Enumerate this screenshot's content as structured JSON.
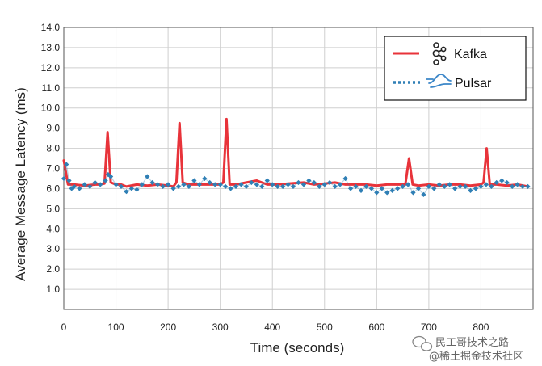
{
  "chart_data": {
    "type": "line",
    "title": "",
    "xlabel": "Time (seconds)",
    "ylabel": "Average Message Latency (ms)",
    "xlim": [
      0,
      900
    ],
    "ylim": [
      0,
      14
    ],
    "x_ticks": [
      "0",
      "100",
      "200",
      "300",
      "400",
      "500",
      "600",
      "700",
      "800"
    ],
    "y_ticks": [
      "1.0",
      "2.0",
      "3.0",
      "4.0",
      "5.0",
      "6.0",
      "7.0",
      "8.0",
      "9.0",
      "10.0",
      "11.0",
      "12.0",
      "13.0",
      "14.0"
    ],
    "grid": true,
    "legend_position": "top-right",
    "series": [
      {
        "name": "Kafka",
        "style": "solid",
        "color": "#e8333a",
        "x": [
          0,
          8,
          20,
          40,
          60,
          70,
          78,
          84,
          90,
          100,
          110,
          120,
          140,
          160,
          180,
          200,
          210,
          216,
          222,
          228,
          240,
          260,
          280,
          300,
          306,
          312,
          318,
          330,
          350,
          370,
          390,
          410,
          430,
          460,
          480,
          500,
          520,
          540,
          560,
          580,
          600,
          620,
          640,
          655,
          662,
          669,
          680,
          700,
          720,
          740,
          760,
          780,
          800,
          805,
          811,
          817,
          830,
          850,
          870,
          890
        ],
        "y": [
          7.4,
          6.2,
          6.2,
          6.15,
          6.2,
          6.2,
          6.25,
          8.8,
          6.3,
          6.2,
          6.2,
          6.1,
          6.2,
          6.15,
          6.2,
          6.15,
          6.1,
          6.3,
          9.25,
          6.3,
          6.2,
          6.2,
          6.2,
          6.2,
          6.3,
          9.45,
          6.2,
          6.2,
          6.3,
          6.4,
          6.2,
          6.2,
          6.25,
          6.3,
          6.2,
          6.25,
          6.3,
          6.2,
          6.2,
          6.2,
          6.15,
          6.2,
          6.2,
          6.2,
          7.5,
          6.2,
          6.15,
          6.2,
          6.15,
          6.2,
          6.2,
          6.15,
          6.2,
          6.3,
          8.0,
          6.2,
          6.2,
          6.15,
          6.2,
          6.1
        ]
      },
      {
        "name": "Pulsar",
        "style": "dotted",
        "color": "#2f7fb5",
        "x": [
          0,
          5,
          10,
          15,
          20,
          30,
          40,
          50,
          60,
          70,
          80,
          85,
          90,
          100,
          110,
          120,
          130,
          140,
          150,
          160,
          170,
          180,
          190,
          200,
          210,
          220,
          230,
          240,
          250,
          260,
          270,
          280,
          290,
          300,
          310,
          320,
          330,
          340,
          350,
          360,
          370,
          380,
          390,
          400,
          410,
          420,
          430,
          440,
          450,
          460,
          470,
          480,
          490,
          500,
          510,
          520,
          530,
          540,
          550,
          560,
          570,
          580,
          590,
          600,
          610,
          620,
          630,
          640,
          650,
          660,
          670,
          680,
          690,
          700,
          710,
          720,
          730,
          740,
          750,
          760,
          770,
          780,
          790,
          800,
          810,
          820,
          830,
          840,
          850,
          860,
          870,
          880,
          890
        ],
        "y": [
          6.5,
          7.2,
          6.4,
          6.0,
          6.1,
          6.0,
          6.2,
          6.1,
          6.3,
          6.2,
          6.4,
          6.7,
          6.6,
          6.2,
          6.1,
          5.85,
          6.0,
          5.95,
          6.2,
          6.6,
          6.3,
          6.2,
          6.1,
          6.2,
          6.0,
          6.1,
          6.2,
          6.1,
          6.4,
          6.2,
          6.5,
          6.3,
          6.2,
          6.2,
          6.1,
          6.0,
          6.1,
          6.2,
          6.1,
          6.3,
          6.2,
          6.1,
          6.4,
          6.2,
          6.1,
          6.1,
          6.2,
          6.1,
          6.3,
          6.2,
          6.4,
          6.3,
          6.1,
          6.2,
          6.3,
          6.1,
          6.2,
          6.5,
          6.0,
          6.1,
          5.9,
          6.1,
          6.0,
          5.8,
          6.0,
          5.8,
          5.9,
          6.0,
          6.1,
          6.2,
          5.8,
          6.0,
          5.7,
          6.1,
          6.0,
          6.2,
          6.1,
          6.2,
          6.0,
          6.1,
          6.1,
          5.9,
          6.0,
          6.1,
          6.2,
          6.1,
          6.3,
          6.4,
          6.3,
          6.1,
          6.2,
          6.1,
          6.1
        ]
      }
    ]
  },
  "legend": {
    "kafka_label": "Kafka",
    "pulsar_label": "Pulsar",
    "kafka_icon": "kafka-logo-icon",
    "pulsar_icon": "pulsar-logo-icon"
  },
  "watermark": {
    "line1": "民工哥技术之路",
    "line2": "@稀土掘金技术社区",
    "icon": "wechat-icon"
  }
}
